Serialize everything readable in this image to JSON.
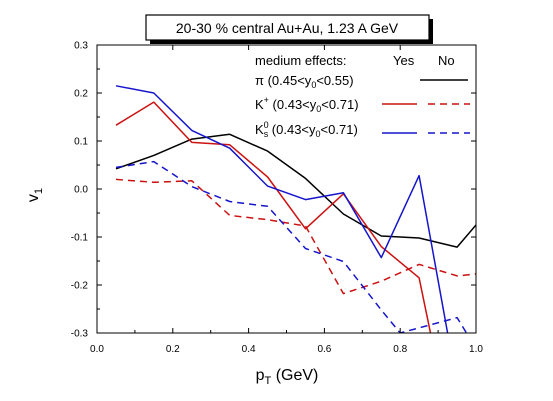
{
  "chart_data": {
    "type": "line",
    "title": "20-30 % central Au+Au, 1.23 A GeV",
    "xlabel": {
      "main": "p",
      "sub": "T",
      "rest": " (GeV)"
    },
    "ylabel": {
      "main": "v",
      "sub": "1"
    },
    "xlim": [
      0.0,
      1.0
    ],
    "ylim": [
      -0.3,
      0.3
    ],
    "xticks": [
      "0.0",
      "0.2",
      "0.4",
      "0.6",
      "0.8",
      "1.0"
    ],
    "yticks": [
      "-0.3",
      "-0.2",
      "-0.1",
      "0.0",
      "0.1",
      "0.2",
      "0.3"
    ],
    "grid": false,
    "legend": {
      "heading": "medium effects:",
      "yes_label": "Yes",
      "no_label": "No",
      "entries": [
        {
          "key": "pi",
          "label_main": "π (0.45<y",
          "label_sub": "0",
          "label_rest": "<0.55)"
        },
        {
          "key": "kplus",
          "label_main": "K",
          "label_sup": "+",
          "label_rest": " (0.43<y",
          "label_sub": "0",
          "label_rest2": "<0.71)"
        },
        {
          "key": "k0s",
          "label_main": "K",
          "label_sup": "0",
          "label_sub2": "s",
          "label_rest": " (0.43<y",
          "label_sub": "0",
          "label_rest2": "<0.71)"
        }
      ]
    },
    "colors": {
      "pi": "#000000",
      "kplus": "#cc1111",
      "k0s": "#1515cc"
    },
    "series": [
      {
        "key": "pi",
        "dash": false,
        "x": [
          0.05,
          0.15,
          0.25,
          0.35,
          0.45,
          0.55,
          0.65,
          0.75,
          0.85,
          0.95,
          1.0
        ],
        "y": [
          0.042,
          0.07,
          0.104,
          0.114,
          0.079,
          0.022,
          -0.052,
          -0.098,
          -0.102,
          -0.121,
          -0.075
        ]
      },
      {
        "key": "kplus",
        "dash": false,
        "x": [
          0.05,
          0.15,
          0.25,
          0.35,
          0.45,
          0.55,
          0.65,
          0.75,
          0.85,
          0.88
        ],
        "y": [
          0.133,
          0.181,
          0.097,
          0.092,
          0.025,
          -0.083,
          -0.01,
          -0.12,
          -0.185,
          -0.3
        ]
      },
      {
        "key": "k0s",
        "dash": false,
        "x": [
          0.05,
          0.15,
          0.25,
          0.35,
          0.45,
          0.55,
          0.65,
          0.75,
          0.85,
          0.925
        ],
        "y": [
          0.215,
          0.2,
          0.122,
          0.085,
          0.006,
          -0.022,
          -0.008,
          -0.143,
          0.028,
          -0.3
        ]
      },
      {
        "key": "kplus",
        "dash": true,
        "x": [
          0.05,
          0.15,
          0.25,
          0.35,
          0.45,
          0.55,
          0.65,
          0.75,
          0.85,
          0.95,
          1.0
        ],
        "y": [
          0.02,
          0.014,
          0.017,
          -0.055,
          -0.064,
          -0.077,
          -0.218,
          -0.192,
          -0.157,
          -0.181,
          -0.177
        ]
      },
      {
        "key": "k0s",
        "dash": true,
        "x": [
          0.05,
          0.15,
          0.25,
          0.35,
          0.45,
          0.55,
          0.65,
          0.75,
          0.8,
          0.95,
          0.975
        ],
        "y": [
          0.045,
          0.057,
          0.005,
          -0.026,
          -0.036,
          -0.124,
          -0.151,
          -0.252,
          -0.3,
          -0.268,
          -0.3
        ]
      }
    ]
  }
}
